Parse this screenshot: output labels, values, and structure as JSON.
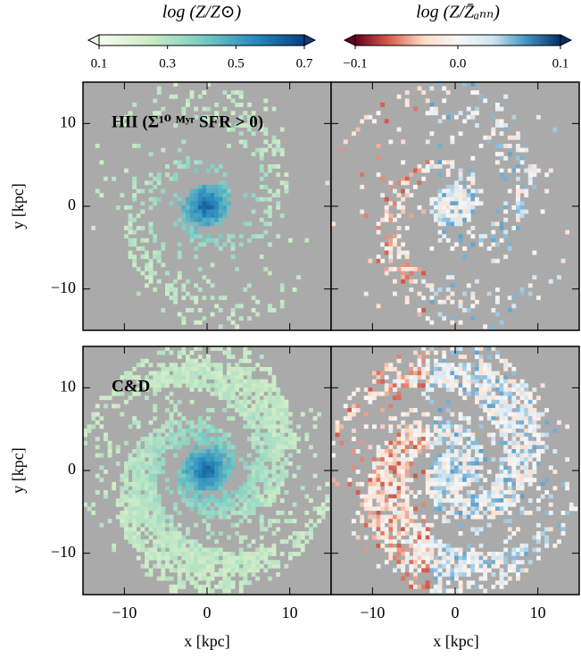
{
  "chart_data": {
    "type": "heatmap",
    "xlim": [
      -15,
      15
    ],
    "ylim": [
      -15,
      15
    ],
    "xticks": [
      {
        "value": -10,
        "label": "−10"
      },
      0,
      10
    ],
    "yticks": [
      {
        "value": -10,
        "label": "−10"
      },
      0,
      10
    ],
    "xlabel": "x [kpc]",
    "ylabel": "y [kpc]",
    "background": "#aaaaaa",
    "colorbars": [
      {
        "label": "log (Z/Z⊙)",
        "lim": [
          0.1,
          0.7
        ],
        "ticks": [
          0.1,
          0.3,
          0.5,
          0.7
        ],
        "colors": [
          "#f7fcf0",
          "#ccebc5",
          "#7bccc4",
          "#2b8cbe",
          "#084081"
        ]
      },
      {
        "label": "log (Z/Z̄ₐₙₙ)",
        "lim": [
          -0.1,
          0.1
        ],
        "ticks": [
          {
            "value": -0.1,
            "label": "−0.1"
          },
          {
            "value": 0,
            "label": "0.0"
          },
          0.1
        ],
        "colors": [
          "#67001f",
          "#d6604d",
          "#fddbc7",
          "#f7f7f7",
          "#d1e5f0",
          "#4393c3",
          "#053061"
        ]
      }
    ],
    "panels": [
      {
        "label": "HII (Σ¹⁰ ᴹʸʳ SFR > 0)"
      },
      {},
      {
        "label": "C&D"
      },
      {}
    ]
  }
}
